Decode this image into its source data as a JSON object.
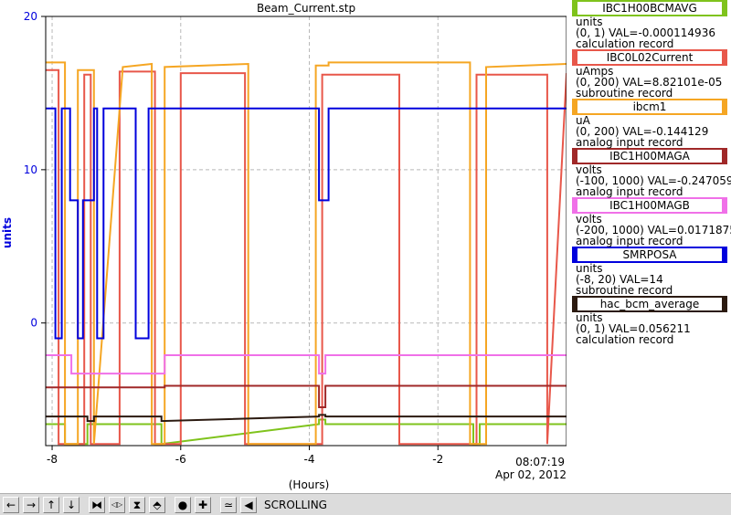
{
  "chart_data": {
    "type": "line",
    "title": "Beam_Current.stp",
    "xlabel": "(Hours)",
    "ylabel": "units",
    "xlim": [
      -8.1,
      0
    ],
    "ylim": [
      -8,
      20
    ],
    "x_ticks": [
      -8,
      -6,
      -4,
      -2
    ],
    "x_tick_labels": [
      "-8",
      "-6",
      "-4",
      "-2"
    ],
    "y_ticks": [
      0,
      10,
      20
    ],
    "y_tick_labels": [
      "0",
      "10",
      "20"
    ],
    "time_label": "08:07:19",
    "date_label": "Apr 02, 2012",
    "grid": true,
    "series": [
      {
        "name": "IBC1H00BCMAVG",
        "color": "#7fc31c",
        "x": [
          -8.1,
          -7.8,
          -7.8,
          -7.45,
          -7.45,
          -6.3,
          -6.3,
          -3.85,
          -3.85,
          -3.75,
          -3.75,
          -1.45,
          -1.45,
          -1.35,
          -1.35,
          0
        ],
        "y": [
          -6.6,
          -6.6,
          -7.9,
          -7.9,
          -6.6,
          -6.6,
          -7.9,
          -6.6,
          -6.3,
          -6.3,
          -6.6,
          -6.6,
          -7.9,
          -7.9,
          -6.6,
          -6.6
        ]
      },
      {
        "name": "IBC0L02Current",
        "color": "#e8574a",
        "x": [
          -8.1,
          -7.9,
          -7.9,
          -7.5,
          -7.5,
          -7.4,
          -7.4,
          -6.95,
          -6.95,
          -6.4,
          -6.4,
          -6.0,
          -6.0,
          -5.0,
          -5.0,
          -3.8,
          -3.8,
          -2.6,
          -2.6,
          -1.4,
          -1.4,
          -0.3,
          -0.3,
          0
        ],
        "y": [
          16.5,
          16.5,
          -7.9,
          -7.9,
          16.2,
          16.2,
          -7.9,
          -7.9,
          16.4,
          16.4,
          -7.9,
          -7.9,
          16.3,
          16.3,
          -7.9,
          -7.9,
          16.2,
          16.2,
          -7.9,
          -7.9,
          16.2,
          16.2,
          -7.9,
          16.3
        ]
      },
      {
        "name": "ibcm1",
        "color": "#f5a623",
        "x": [
          -8.1,
          -7.8,
          -7.8,
          -7.6,
          -7.6,
          -7.35,
          -7.35,
          -6.9,
          -6.9,
          -6.45,
          -6.45,
          -6.25,
          -6.25,
          -4.95,
          -4.95,
          -3.9,
          -3.9,
          -3.7,
          -3.7,
          -1.5,
          -1.5,
          -1.25,
          -1.25,
          0
        ],
        "y": [
          17.0,
          17.0,
          -7.9,
          -7.9,
          16.5,
          16.5,
          -7.9,
          16.7,
          16.7,
          16.9,
          -7.9,
          -7.9,
          16.7,
          16.9,
          -7.9,
          -7.9,
          16.8,
          16.8,
          17.0,
          17.0,
          -7.9,
          -7.9,
          16.7,
          16.9
        ]
      },
      {
        "name": "IBC1H00MAGA",
        "color": "#a02828",
        "x": [
          -8.1,
          -6.25,
          -6.25,
          -3.85,
          -3.85,
          -3.75,
          -3.75,
          0
        ],
        "y": [
          -4.2,
          -4.2,
          -4.1,
          -4.1,
          -5.5,
          -5.5,
          -4.1,
          -4.1
        ]
      },
      {
        "name": "IBC1H00MAGB",
        "color": "#f070e8",
        "x": [
          -8.1,
          -7.7,
          -7.7,
          -6.55,
          -6.55,
          -6.25,
          -6.25,
          -3.85,
          -3.85,
          -3.75,
          -3.75,
          0
        ],
        "y": [
          -2.1,
          -2.1,
          -3.3,
          -3.3,
          -3.3,
          -3.3,
          -2.1,
          -2.1,
          -3.3,
          -3.3,
          -2.1,
          -2.1
        ]
      },
      {
        "name": "SMRPOSA",
        "color": "#0000dd",
        "x": [
          -8.1,
          -7.95,
          -7.95,
          -7.85,
          -7.85,
          -7.72,
          -7.72,
          -7.6,
          -7.6,
          -7.52,
          -7.52,
          -7.35,
          -7.35,
          -7.3,
          -7.3,
          -7.2,
          -7.2,
          -6.95,
          -6.95,
          -6.7,
          -6.7,
          -6.5,
          -6.5,
          -3.85,
          -3.85,
          -3.7,
          -3.7,
          0
        ],
        "y": [
          14,
          14,
          -1,
          -1,
          14,
          14,
          8,
          8,
          -1,
          -1,
          8,
          8,
          14,
          14,
          -1,
          -1,
          14,
          14,
          14,
          14,
          -1,
          -1,
          14,
          14,
          8,
          8,
          14,
          14
        ]
      },
      {
        "name": "hac_bcm_average",
        "color": "#2b1a10",
        "x": [
          -8.1,
          -7.45,
          -7.45,
          -7.35,
          -7.35,
          -6.3,
          -6.3,
          -3.85,
          -3.85,
          -3.75,
          -3.75,
          0
        ],
        "y": [
          -6.1,
          -6.1,
          -6.4,
          -6.4,
          -6.1,
          -6.1,
          -6.4,
          -6.1,
          -6.0,
          -6.0,
          -6.1,
          -6.1
        ]
      }
    ]
  },
  "legend": [
    {
      "name": "IBC1H00BCMAVG",
      "color": "#7fc31c",
      "line1": "units",
      "line2": "(0, 1) VAL=-0.000114936",
      "line3": "calculation record"
    },
    {
      "name": "IBC0L02Current",
      "color": "#e8574a",
      "line1": "uAmps",
      "line2": "(0, 200) VAL=8.82101e-05",
      "line3": "subroutine record"
    },
    {
      "name": "ibcm1",
      "color": "#f5a623",
      "line1": "uA",
      "line2": "(0, 200) VAL=-0.144129",
      "line3": "analog input record"
    },
    {
      "name": "IBC1H00MAGA",
      "color": "#a02828",
      "line1": "volts",
      "line2": "(-100, 1000) VAL=-0.247059",
      "line3": "analog input record"
    },
    {
      "name": "IBC1H00MAGB",
      "color": "#f070e8",
      "line1": "volts",
      "line2": "(-200, 1000) VAL=0.0171875",
      "line3": "analog input record"
    },
    {
      "name": "SMRPOSA",
      "color": "#0000dd",
      "line1": "units",
      "line2": "(-8, 20) VAL=14",
      "line3": "subroutine record"
    },
    {
      "name": "hac_bcm_average",
      "color": "#2b1a10",
      "line1": "units",
      "line2": "(0, 1) VAL=0.056211",
      "line3": "calculation record"
    }
  ],
  "toolbar": {
    "buttons": [
      {
        "icon": "arrow-left-icon",
        "glyph": "←"
      },
      {
        "icon": "arrow-right-icon",
        "glyph": "→"
      },
      {
        "icon": "arrow-up-icon",
        "glyph": "↑"
      },
      {
        "icon": "arrow-down-icon",
        "glyph": "↓"
      },
      {
        "icon": "zoom-in-horizontal-icon",
        "glyph": "⧓"
      },
      {
        "icon": "zoom-out-horizontal-icon",
        "glyph": "◁▷"
      },
      {
        "icon": "zoom-in-vertical-icon",
        "glyph": "⧗"
      },
      {
        "icon": "zoom-out-vertical-icon",
        "glyph": "⬘"
      },
      {
        "icon": "stop-icon",
        "glyph": "●"
      },
      {
        "icon": "add-icon",
        "glyph": "✚"
      },
      {
        "icon": "autoscale-icon",
        "glyph": "≃"
      },
      {
        "icon": "back-icon",
        "glyph": "◀"
      }
    ],
    "status": "SCROLLING"
  }
}
